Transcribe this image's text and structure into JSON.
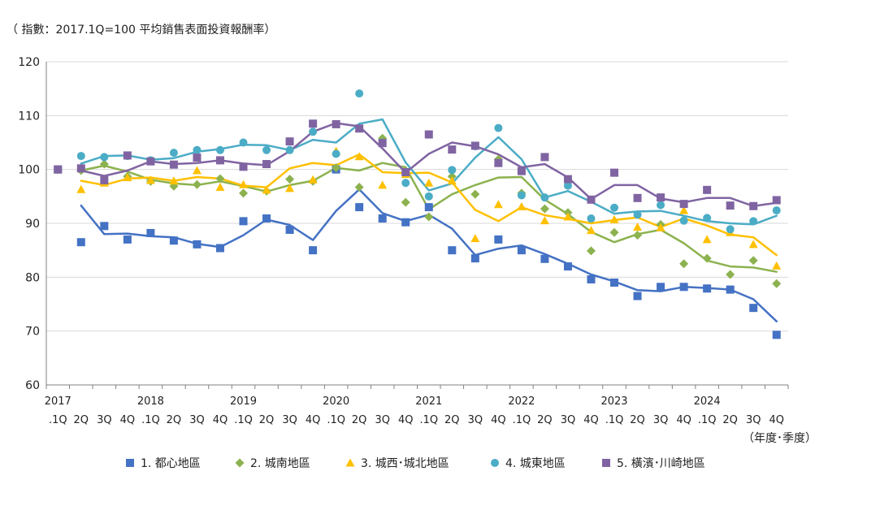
{
  "chart_data": {
    "type": "line",
    "subtitle": "（ 指數：2017.1Q=100  平均銷售表面投資報酬率）",
    "xlabel": "（年度･季度）",
    "ylim": [
      60,
      120
    ],
    "yticks": [
      60,
      70,
      80,
      90,
      100,
      110,
      120
    ],
    "grid": "horizontal",
    "legend_position": "bottom",
    "x_tick_labels": [
      {
        "year": "2017",
        "q": ".1Q"
      },
      {
        "year": "",
        "q": "2Q"
      },
      {
        "year": "",
        "q": "3Q"
      },
      {
        "year": "",
        "q": "4Q"
      },
      {
        "year": "2018",
        "q": ".1Q"
      },
      {
        "year": "",
        "q": "2Q"
      },
      {
        "year": "",
        "q": "3Q"
      },
      {
        "year": "",
        "q": "4Q"
      },
      {
        "year": "2019",
        "q": ".1Q"
      },
      {
        "year": "",
        "q": "2Q"
      },
      {
        "year": "",
        "q": "3Q"
      },
      {
        "year": "",
        "q": "4Q"
      },
      {
        "year": "2020",
        "q": ".1Q"
      },
      {
        "year": "",
        "q": "2Q"
      },
      {
        "year": "",
        "q": "3Q"
      },
      {
        "year": "",
        "q": "4Q"
      },
      {
        "year": "2021",
        "q": ".1Q"
      },
      {
        "year": "",
        "q": "2Q"
      },
      {
        "year": "",
        "q": "3Q"
      },
      {
        "year": "",
        "q": "4Q"
      },
      {
        "year": "2022",
        "q": ".1Q"
      },
      {
        "year": "",
        "q": "2Q"
      },
      {
        "year": "",
        "q": "3Q"
      },
      {
        "year": "",
        "q": "4Q"
      },
      {
        "year": "2023",
        "q": ".1Q"
      },
      {
        "year": "",
        "q": "2Q"
      },
      {
        "year": "",
        "q": "3Q"
      },
      {
        "year": "",
        "q": "4Q"
      },
      {
        "year": "2024",
        "q": ".1Q"
      },
      {
        "year": "",
        "q": "2Q"
      },
      {
        "year": "",
        "q": "3Q"
      },
      {
        "year": "",
        "q": "4Q"
      }
    ],
    "series": [
      {
        "name": "1. 都心地區",
        "color": "#4472C4",
        "marker": "square",
        "points": [
          100.0,
          86.5,
          89.5,
          87.0,
          88.2,
          86.8,
          86.1,
          85.4,
          90.4,
          90.9,
          88.8,
          85.0,
          100.0,
          93.0,
          90.9,
          90.2,
          93.0,
          85.0,
          83.5,
          87.0,
          85.0,
          83.4,
          82.0,
          79.6,
          79.0,
          76.5,
          78.2,
          78.2,
          77.9,
          77.7,
          74.3,
          69.3
        ],
        "line": [
          null,
          93.3,
          88.0,
          88.1,
          87.6,
          87.4,
          86.2,
          85.6,
          87.8,
          90.7,
          89.7,
          86.9,
          92.3,
          96.3,
          91.9,
          90.4,
          91.6,
          89.0,
          84.1,
          85.3,
          85.9,
          84.3,
          82.5,
          80.5,
          79.2,
          77.6,
          77.4,
          78.2,
          78.0,
          77.7,
          75.9,
          71.8
        ]
      },
      {
        "name": "2. 城南地區",
        "color": "#8CB24F",
        "marker": "diamond",
        "points": [
          100.0,
          99.8,
          101.0,
          98.7,
          97.8,
          96.9,
          97.2,
          98.3,
          95.6,
          96.0,
          98.2,
          97.8,
          100.3,
          96.7,
          105.8,
          93.9,
          91.2,
          98.7,
          95.4,
          101.9,
          95.6,
          92.7,
          92.0,
          84.9,
          88.3,
          87.8,
          89.8,
          82.5,
          83.5,
          80.5,
          83.1,
          78.8
        ],
        "line": [
          null,
          99.8,
          100.7,
          99.6,
          98.1,
          97.4,
          97.1,
          97.8,
          96.9,
          95.9,
          97.1,
          97.9,
          100.3,
          99.8,
          101.2,
          100.4,
          92.6,
          95.4,
          97.1,
          98.5,
          98.6,
          94.4,
          91.7,
          88.4,
          86.5,
          88.0,
          88.8,
          86.3,
          83.1,
          82.0,
          81.8,
          81.0
        ]
      },
      {
        "name": "3. 城西･城北地區",
        "color": "#FFC000",
        "marker": "triangle",
        "points": [
          100.0,
          96.3,
          97.5,
          98.5,
          98.0,
          97.9,
          99.8,
          96.7,
          97.2,
          96.2,
          96.5,
          98.1,
          103.4,
          102.4,
          97.1,
          99.1,
          97.5,
          97.9,
          87.2,
          93.5,
          93.1,
          90.5,
          91.2,
          88.7,
          90.7,
          89.3,
          89.2,
          92.4,
          87.0,
          88.3,
          86.1,
          82.1
        ],
        "line": [
          null,
          97.9,
          97.1,
          98.3,
          98.5,
          97.9,
          98.6,
          98.3,
          97.0,
          96.7,
          100.2,
          101.2,
          100.8,
          102.8,
          99.5,
          99.3,
          99.4,
          97.6,
          92.5,
          90.4,
          93.0,
          91.5,
          90.8,
          90.0,
          90.6,
          91.1,
          89.3,
          90.9,
          89.6,
          87.9,
          87.4,
          84.1
        ]
      },
      {
        "name": "4. 城東地區",
        "color": "#4BACC6",
        "marker": "circle",
        "points": [
          100.0,
          102.5,
          102.3,
          102.5,
          101.7,
          103.1,
          103.6,
          103.6,
          105.0,
          103.6,
          103.6,
          107.0,
          102.9,
          114.1,
          105.0,
          97.5,
          95.0,
          99.9,
          104.3,
          107.7,
          95.2,
          94.8,
          97.0,
          90.9,
          92.9,
          91.6,
          93.4,
          90.5,
          91.0,
          88.9,
          90.4,
          92.4
        ],
        "line": [
          null,
          101.1,
          102.5,
          102.6,
          101.8,
          102.1,
          103.3,
          103.8,
          104.6,
          104.5,
          103.6,
          105.5,
          105.0,
          108.5,
          109.3,
          101.3,
          96.1,
          97.4,
          102.2,
          106.0,
          101.9,
          94.8,
          96.0,
          94.0,
          91.8,
          92.2,
          92.3,
          91.4,
          90.4,
          90.0,
          89.8,
          91.4
        ]
      },
      {
        "name": "5. 橫濱･川崎地區",
        "color": "#8064A2",
        "marker": "square",
        "points": [
          100.0,
          100.2,
          98.0,
          102.6,
          101.5,
          100.9,
          102.2,
          101.7,
          100.5,
          101.0,
          105.2,
          108.5,
          108.4,
          107.6,
          104.9,
          99.5,
          106.5,
          103.7,
          104.4,
          101.2,
          99.7,
          102.3,
          98.2,
          94.4,
          99.4,
          94.7,
          94.8,
          93.6,
          96.2,
          93.3,
          93.2,
          94.3
        ],
        "line": [
          null,
          99.8,
          98.8,
          99.8,
          101.5,
          101.0,
          101.2,
          101.7,
          101.1,
          100.8,
          103.4,
          107.0,
          108.6,
          108.0,
          103.9,
          99.4,
          102.9,
          105.0,
          104.3,
          102.8,
          100.4,
          101.0,
          98.5,
          94.5,
          97.1,
          97.1,
          94.6,
          93.9,
          94.7,
          94.7,
          93.2,
          93.8
        ]
      }
    ]
  }
}
